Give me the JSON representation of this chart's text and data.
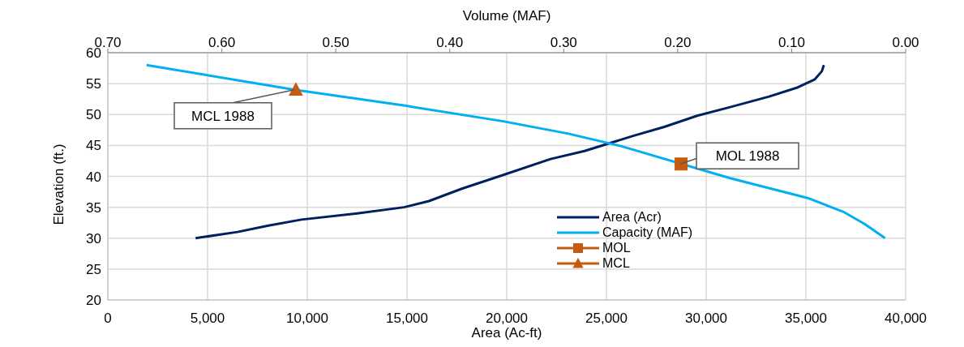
{
  "chart_data": {
    "type": "line",
    "xlabel": "Area (Ac-ft)",
    "x2label": "Volume (MAF)",
    "ylabel": "Elevation (ft.)",
    "xlim": [
      0,
      40000
    ],
    "xticks": [
      0,
      {
        "value": 5000,
        "label": "5,000"
      },
      {
        "value": 10000,
        "label": "10,000"
      },
      {
        "value": 15000,
        "label": "15,000"
      },
      {
        "value": 20000,
        "label": "20,000"
      },
      {
        "value": 25000,
        "label": "25,000"
      },
      {
        "value": 30000,
        "label": "30,000"
      },
      {
        "value": 35000,
        "label": "35,000"
      },
      {
        "value": 40000,
        "label": "40,000"
      }
    ],
    "x2lim": [
      0.7,
      0
    ],
    "x2ticks": [
      {
        "value": 0.7,
        "label": "0.70"
      },
      {
        "value": 0.6,
        "label": "0.60"
      },
      {
        "value": 0.5,
        "label": "0.50"
      },
      {
        "value": 0.4,
        "label": "0.40"
      },
      {
        "value": 0.3,
        "label": "0.30"
      },
      {
        "value": 0.2,
        "label": "0.20"
      },
      {
        "value": 0.1,
        "label": "0.10"
      },
      {
        "value": 0,
        "label": "0.00"
      }
    ],
    "ylim": [
      20,
      60
    ],
    "yticks": [
      20,
      25,
      30,
      35,
      40,
      45,
      50,
      55,
      60
    ],
    "grid": true,
    "legend": "bottom",
    "series": [
      {
        "name": "Area (Acr)",
        "color": "#002060",
        "marker": "none",
        "x": [
          4400,
          6500,
          8000,
          9700,
          12500,
          14850,
          16100,
          17750,
          19800,
          22200,
          23900,
          26300,
          27900,
          29550,
          31200,
          33150,
          34600,
          35450,
          35800,
          35900
        ],
        "values": [
          30,
          31,
          32,
          33,
          34,
          35,
          36,
          38,
          40.2,
          42.8,
          44.1,
          46.5,
          48,
          49.8,
          51.2,
          52.9,
          54.4,
          55.7,
          57,
          58
        ]
      },
      {
        "name": "Capacity (MAF)",
        "axis": "x2",
        "color": "#00b0f0",
        "marker": "none",
        "x": [
          0.666,
          0.536,
          0.438,
          0.353,
          0.296,
          0.25,
          0.154,
          0.086,
          0.054,
          0.036,
          0.018
        ],
        "values": [
          58,
          54,
          51.4,
          48.9,
          46.9,
          44.9,
          39.7,
          36.5,
          34.2,
          32.3,
          30
        ]
      },
      {
        "name": "MOL",
        "type": "scatter",
        "axis": "x2",
        "color": "#c55a11",
        "marker": "square",
        "x": [
          0.197
        ],
        "values": [
          42
        ]
      },
      {
        "name": "MCL",
        "type": "scatter",
        "axis": "x2",
        "color": "#c55a11",
        "marker": "triangle",
        "x": [
          0.535
        ],
        "values": [
          54
        ]
      }
    ],
    "annotations": [
      {
        "text": "MOL 1988",
        "x": 28700,
        "y": 42
      },
      {
        "text": "MCL 1988",
        "x": 9350,
        "y": 54
      }
    ]
  }
}
